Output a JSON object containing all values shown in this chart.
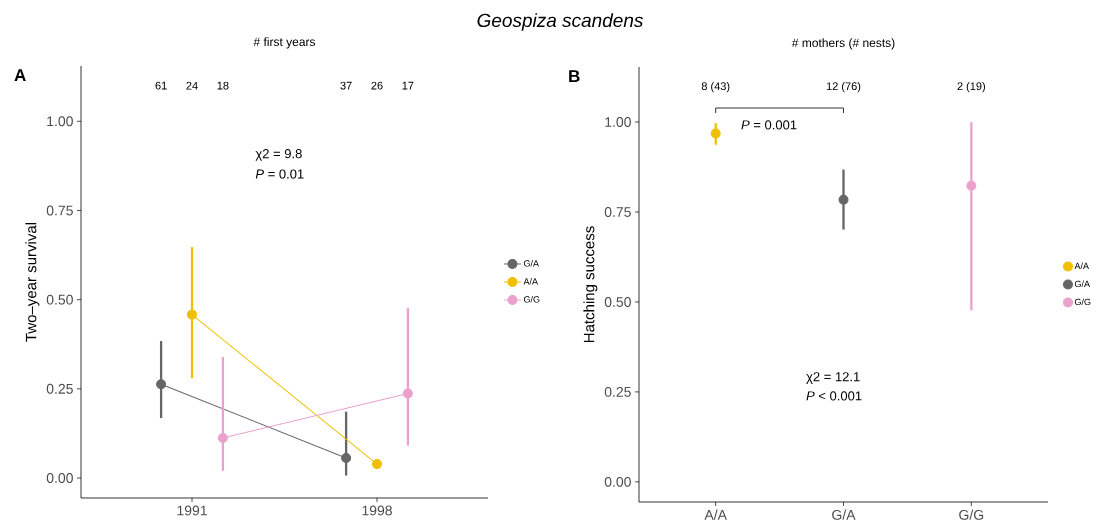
{
  "chart_data": [
    {
      "type": "line",
      "title": "Geospiza scandens",
      "subtitle": "# first years",
      "ylabel": "Two–year survival",
      "categories": [
        "1991",
        "1998"
      ],
      "series": [
        {
          "name": "G/A",
          "color": "#666666",
          "values": [
            0.263,
            0.056
          ],
          "errors": [
            [
              0.168,
              0.384
            ],
            [
              0.007,
              0.186
            ]
          ]
        },
        {
          "name": "A/A",
          "color": "#efc000",
          "values": [
            0.458,
            0.039
          ],
          "errors": [
            [
              0.28,
              0.647
            ],
            null
          ]
        },
        {
          "name": "G/G",
          "color": "#eaa2cc",
          "values": [
            0.112,
            0.237
          ],
          "errors": [
            [
              0.02,
              0.339
            ],
            [
              0.091,
              0.477
            ]
          ]
        }
      ],
      "ylim": [
        -0.056,
        1.155
      ],
      "yticks": [
        {
          "value": 0,
          "label": "0.00"
        },
        {
          "value": 0.25,
          "label": "0.25"
        },
        {
          "value": 0.5,
          "label": "0.50"
        },
        {
          "value": 0.75,
          "label": "0.75"
        },
        {
          "value": 1,
          "label": "1.00"
        }
      ],
      "legend": "right",
      "marker": "circle",
      "annotations": [
        "A",
        "χ2  = 9.8",
        "*P* = 0.01",
        "61",
        "24",
        "18",
        "37",
        "26",
        "17"
      ]
    },
    {
      "type": "scatter",
      "subtitle": "# mothers (# nests)",
      "ylabel": "Hatching success",
      "categories": [
        "A/A",
        "G/A",
        "G/G"
      ],
      "series": [
        {
          "name": "A/A",
          "color": "#efc000",
          "values": [
            0.968,
            null,
            null
          ],
          "errors": [
            [
              0.937,
              0.997
            ],
            null,
            null
          ]
        },
        {
          "name": "G/A",
          "color": "#666666",
          "values": [
            null,
            0.784,
            null
          ],
          "errors": [
            null,
            [
              0.701,
              0.868
            ],
            null
          ]
        },
        {
          "name": "G/G",
          "color": "#eaa2cc",
          "values": [
            null,
            null,
            0.823
          ],
          "errors": [
            null,
            null,
            [
              0.477,
              1.0
            ]
          ]
        }
      ],
      "ylim": [
        -0.056,
        1.153
      ],
      "yticks": [
        {
          "value": 0,
          "label": "0.00"
        },
        {
          "value": 0.25,
          "label": "0.25"
        },
        {
          "value": 0.5,
          "label": "0.50"
        },
        {
          "value": 0.75,
          "label": "0.75"
        },
        {
          "value": 1,
          "label": "1.00"
        }
      ],
      "legend": "right",
      "marker": "circle",
      "annotations": [
        "B",
        "*P* = 0.001",
        "χ2  = 12.1",
        "*P* < 0.001",
        "8 (43)",
        "12 (76)",
        "2 (19)"
      ]
    }
  ]
}
